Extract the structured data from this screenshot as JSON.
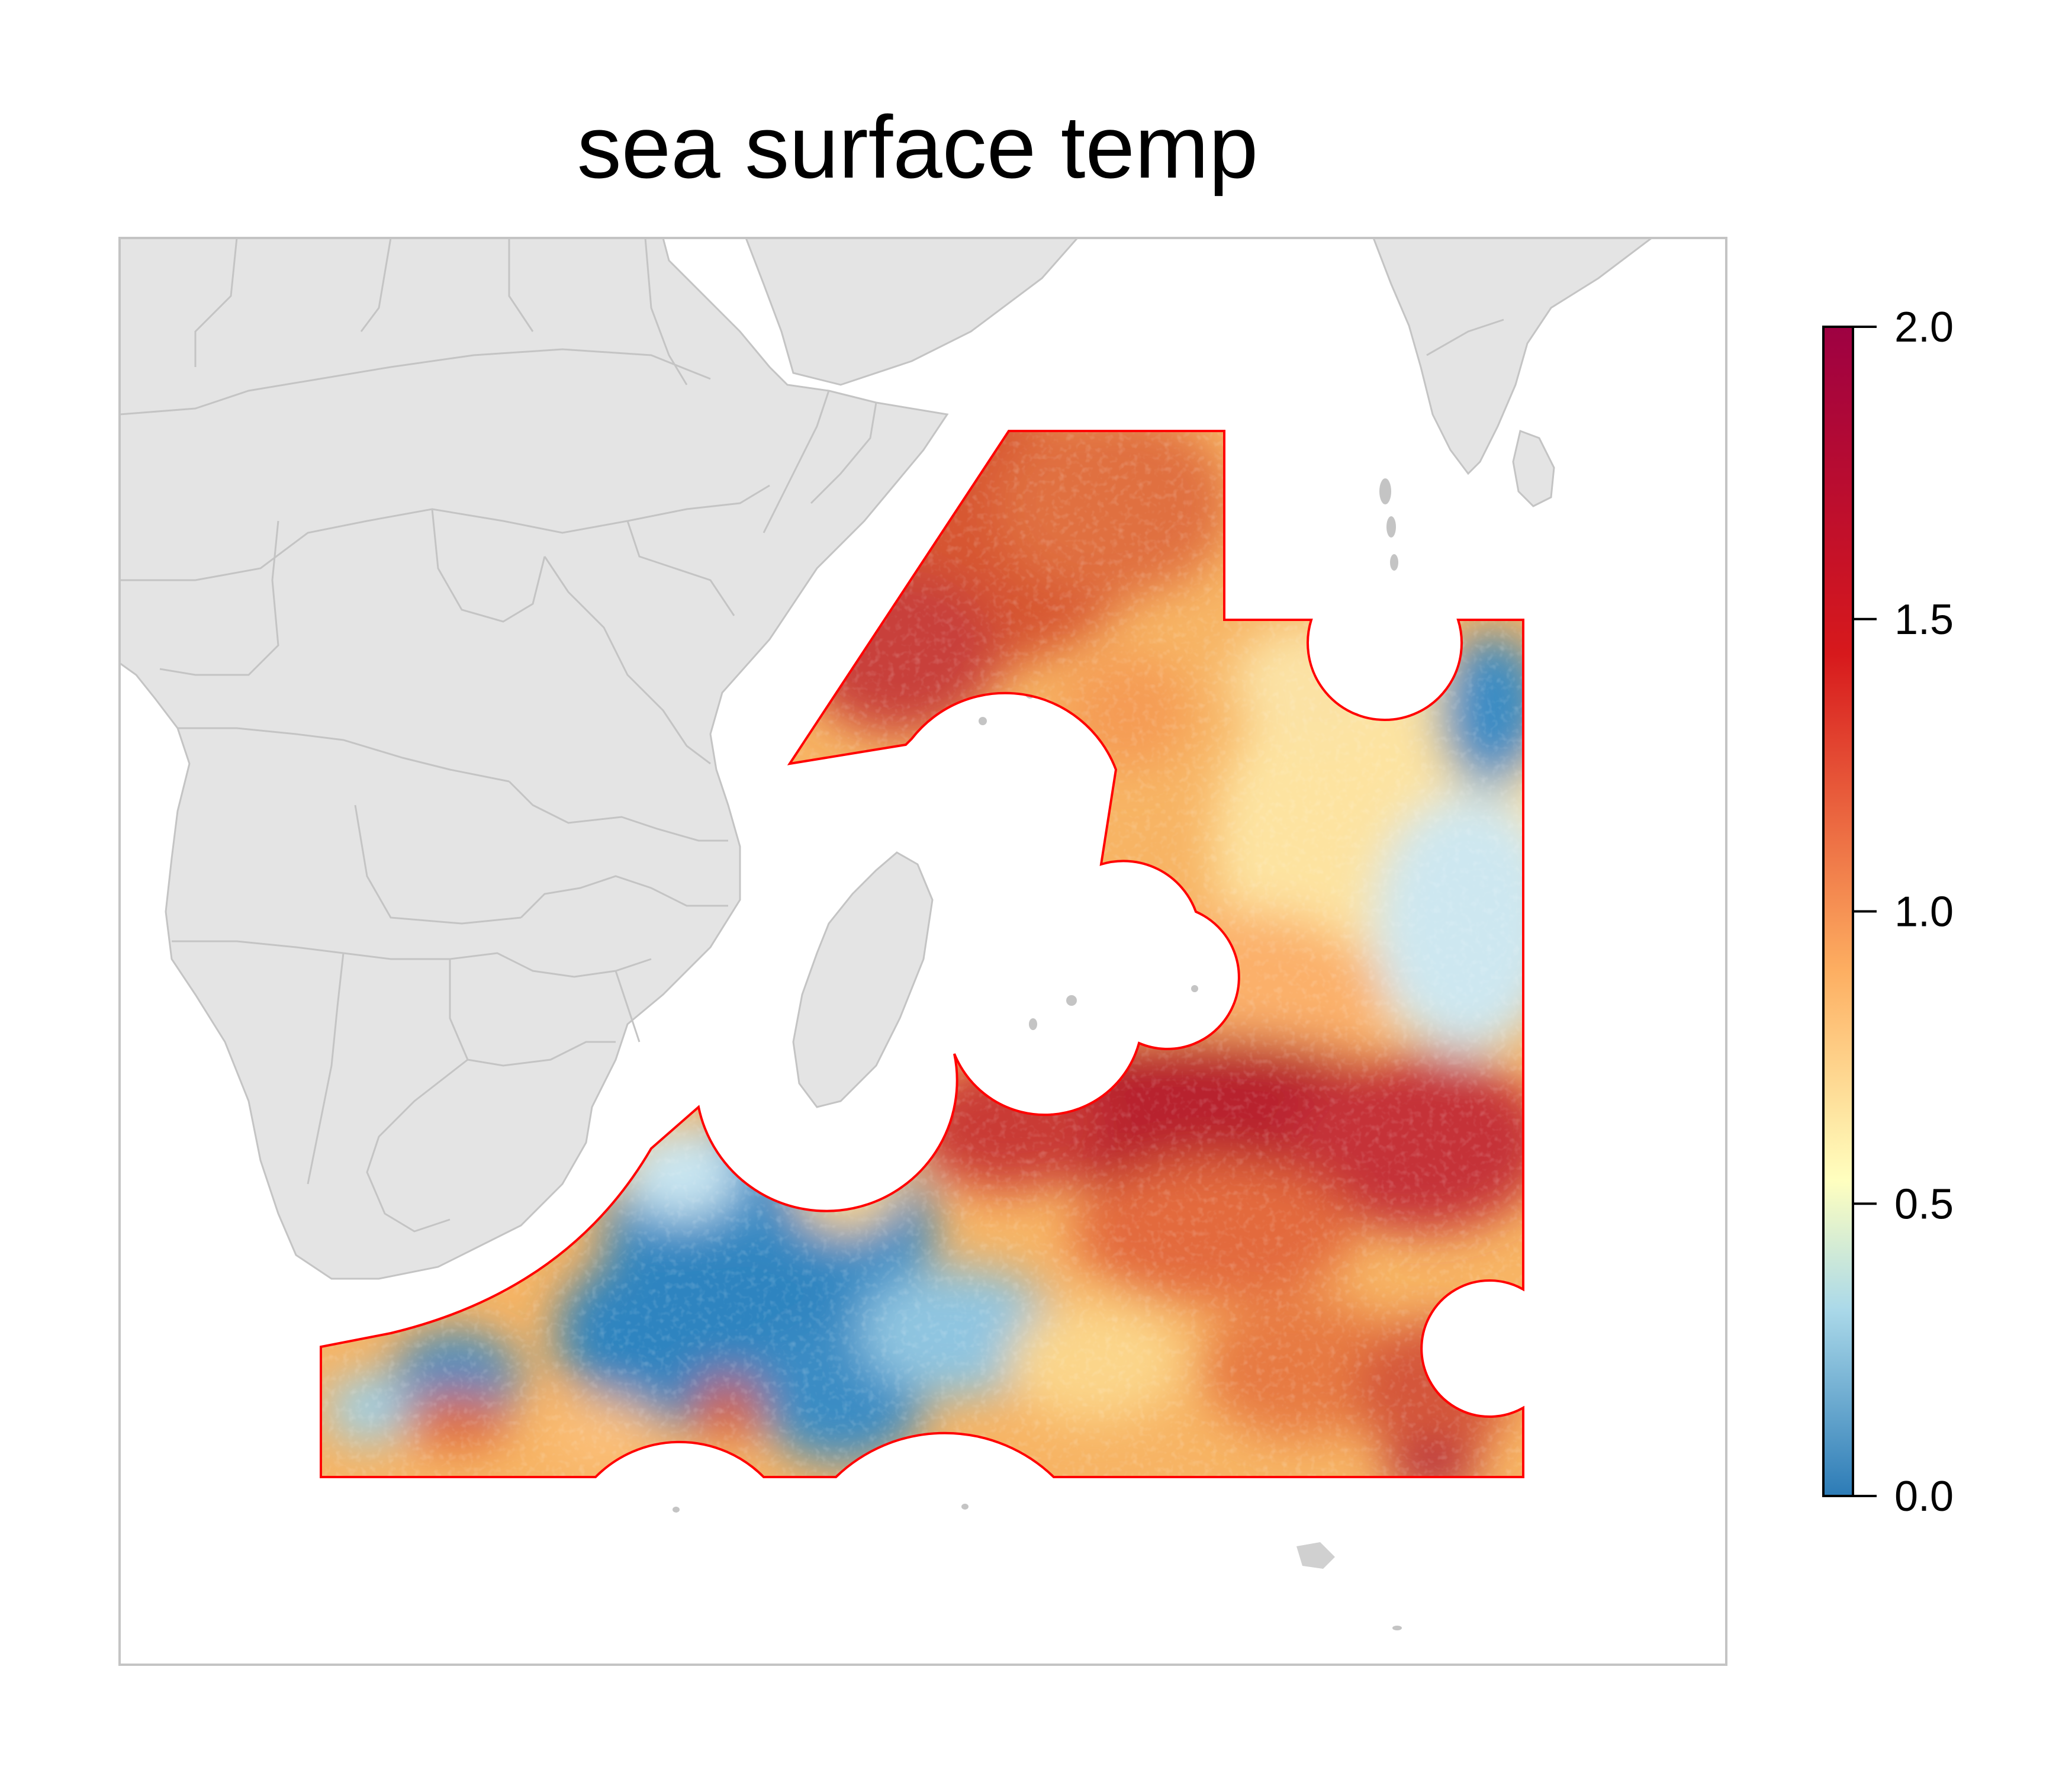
{
  "title": "sea surface temp",
  "colorbar": {
    "ticks": [
      "0.0",
      "0.5",
      "1.0",
      "1.5",
      "2.0"
    ],
    "min": 0.0,
    "max": 2.0,
    "palette": [
      "#2c7bb6",
      "#abd9e9",
      "#ffffbf",
      "#fdae61",
      "#d7191c",
      "#9e0142"
    ]
  },
  "colors": {
    "land": "#e4e4e4",
    "land_border": "#c4c4c4",
    "frame": "#c4c4c4",
    "study_area_outline": "#ff0000",
    "ocean": "#ffffff"
  }
}
